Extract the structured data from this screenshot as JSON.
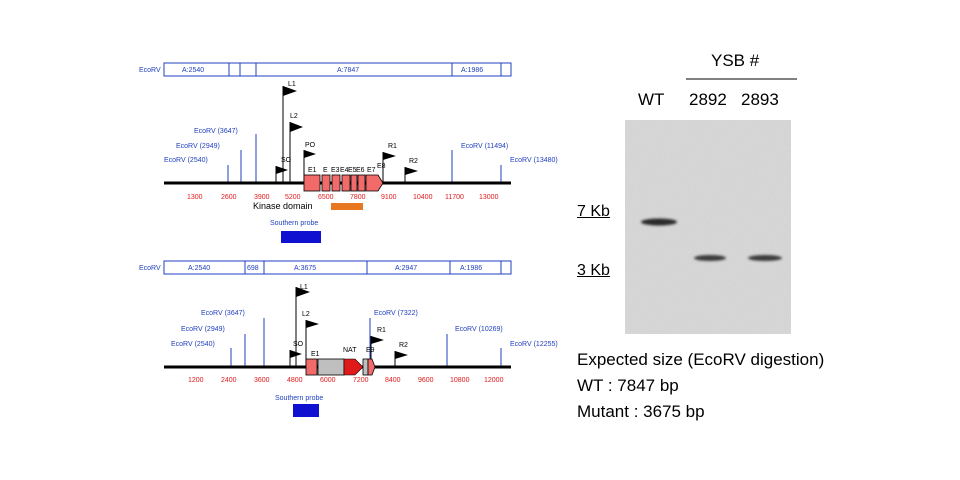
{
  "map_wt": {
    "ecorv_prefix": "EcoRV",
    "segments": [
      "A:2540",
      "A:7847",
      "A:1986"
    ],
    "markers": {
      "L1": "L1",
      "L2": "L2",
      "PO": "PO",
      "SO": "SO",
      "R1": "R1",
      "R2": "R2"
    },
    "sites": [
      "EcoRV (3647)",
      "EcoRV (2949)",
      "EcoRV (2540)",
      "EcoRV (11494)",
      "EcoRV (13480)"
    ],
    "exons": [
      "E1",
      "E",
      "E3",
      "E4",
      "E5",
      "E6",
      "E7",
      "E8"
    ],
    "scale": [
      "1300",
      "2600",
      "3900",
      "5200",
      "6500",
      "7800",
      "9100",
      "10400",
      "11700",
      "13000"
    ],
    "kinase_label": "Kinase domain",
    "probe_label": "Southern probe"
  },
  "map_mut": {
    "ecorv_prefix": "EcoRV",
    "segments": [
      "A:2540",
      "698",
      "A:3675",
      "A:2947",
      "A:1986"
    ],
    "markers": {
      "L1": "L1",
      "L2": "L2",
      "SO": "SO",
      "R1": "R1",
      "R2": "R2"
    },
    "sites": [
      "EcoRV (3647)",
      "EcoRV (2949)",
      "EcoRV (2540)",
      "EcoRV (7322)",
      "EcoRV (10269)",
      "EcoRV (12255)"
    ],
    "exons": [
      "E1",
      "NAT",
      "E9"
    ],
    "scale": [
      "1200",
      "2400",
      "3600",
      "4800",
      "6000",
      "7200",
      "8400",
      "9600",
      "10800",
      "12000"
    ],
    "probe_label": "Southern probe"
  },
  "blot": {
    "group_label": "YSB #",
    "lanes": [
      "WT",
      "2892",
      "2893"
    ],
    "size_markers": [
      "7 Kb",
      "3 Kb"
    ]
  },
  "expected": {
    "title": "Expected size (EcoRV digestion)",
    "wt": "WT : 7847 bp",
    "mutant": "Mutant : 3675 bp"
  },
  "colors": {
    "blue": "#1f3fbf",
    "red": "#e0191a",
    "exon_fill": "#f26b6b",
    "orange": "#e87722",
    "probe_blue": "#1010d0",
    "gray": "#bfbfbf"
  }
}
